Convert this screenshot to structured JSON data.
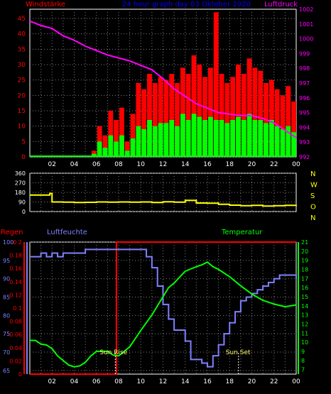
{
  "header": {
    "left_title": "Windstärke",
    "center_title": "24 hour graph day  03 Oktober 2020",
    "right_title": "Luftdruck"
  },
  "colors": {
    "background": "#000000",
    "axis": "#ffffff",
    "grid": "#808080",
    "wind_avg": "#00ff00",
    "wind_gust": "#ff0000",
    "wind_peak": "#ffffff",
    "pressure": "#ff00ff",
    "direction": "#ffff00",
    "rain": "#ff0000",
    "humidity": "#8080ff",
    "temperature": "#00ff00",
    "title_blue": "#0000ff"
  },
  "chart_data": [
    {
      "id": "wind",
      "type": "bar",
      "title": "Windstärke",
      "ylabel_left": "Windstärke",
      "ylabel_right": "Luftdruck",
      "ylim": [
        0,
        48
      ],
      "yticks": [
        0,
        5,
        10,
        15,
        20,
        25,
        30,
        35,
        40,
        45
      ],
      "y2lim": [
        992,
        1002
      ],
      "y2ticks": [
        992,
        993,
        994,
        995,
        996,
        997,
        998,
        999,
        1000,
        1001,
        1002
      ],
      "xlim": [
        0,
        24
      ],
      "xticks": [
        "02",
        "04",
        "06",
        "08",
        "10",
        "12",
        "14",
        "16",
        "18",
        "20",
        "22",
        "00"
      ],
      "xtick_hours": [
        2,
        4,
        6,
        8,
        10,
        12,
        14,
        16,
        18,
        20,
        22,
        24
      ],
      "series": [
        {
          "name": "gust",
          "x": [
            6,
            6.5,
            7,
            7.5,
            8,
            8.5,
            9,
            9.5,
            10,
            10.5,
            11,
            11.5,
            12,
            12.5,
            13,
            13.5,
            14,
            14.5,
            15,
            15.5,
            16,
            16.5,
            17,
            17.5,
            18,
            18.5,
            19,
            19.5,
            20,
            20.5,
            21,
            21.5,
            22,
            22.5,
            23,
            23.5,
            24
          ],
          "values": [
            2,
            10,
            7,
            15,
            12,
            16,
            5,
            14,
            24,
            22,
            27,
            24,
            26,
            25,
            27,
            24,
            29,
            27,
            33,
            30,
            26,
            29,
            47,
            27,
            24,
            26,
            30,
            27,
            32,
            29,
            28,
            24,
            25,
            22,
            20,
            23,
            18
          ]
        },
        {
          "name": "average",
          "x": [
            6,
            6.5,
            7,
            7.5,
            8,
            8.5,
            9,
            9.5,
            10,
            10.5,
            11,
            11.5,
            12,
            12.5,
            13,
            13.5,
            14,
            14.5,
            15,
            15.5,
            16,
            16.5,
            17,
            17.5,
            18,
            18.5,
            19,
            19.5,
            20,
            20.5,
            21,
            21.5,
            22,
            22.5,
            23,
            23.5,
            24
          ],
          "values": [
            1,
            5,
            3,
            7,
            5,
            7,
            2,
            6,
            10,
            9,
            12,
            10,
            11,
            11,
            12,
            10,
            14,
            12,
            14,
            13,
            12,
            13,
            12,
            12,
            11,
            12,
            13,
            12,
            14,
            12,
            12,
            11,
            12,
            10,
            9,
            10,
            8
          ]
        },
        {
          "name": "pressure",
          "x": [
            0,
            1,
            2,
            3,
            4,
            5,
            6,
            7,
            8,
            9,
            10,
            11,
            12,
            13,
            14,
            15,
            16,
            17,
            18,
            19,
            20,
            21,
            22,
            23,
            24
          ],
          "values": [
            1001.2,
            1000.9,
            1000.7,
            1000.2,
            999.9,
            999.5,
            999.2,
            998.9,
            998.7,
            998.5,
            998.2,
            997.9,
            997.3,
            996.6,
            996.1,
            995.6,
            995.3,
            995.0,
            994.9,
            994.8,
            994.8,
            994.6,
            994.3,
            993.8,
            993.3
          ]
        }
      ]
    },
    {
      "id": "direction",
      "type": "line",
      "ylim": [
        0,
        360
      ],
      "yticks": [
        0,
        90,
        180,
        270,
        360
      ],
      "right_labels": [
        "N",
        "W",
        "S",
        "O",
        "N"
      ],
      "xlim": [
        0,
        24
      ],
      "series": [
        {
          "name": "direction",
          "x": [
            0,
            1,
            1.8,
            2,
            3,
            4,
            5,
            6,
            7,
            8,
            9,
            10,
            11,
            12,
            13,
            14,
            15,
            16,
            17,
            18,
            19,
            20,
            21,
            22,
            23,
            24
          ],
          "values": [
            155,
            155,
            170,
            90,
            88,
            85,
            87,
            90,
            88,
            90,
            88,
            90,
            85,
            92,
            88,
            105,
            80,
            78,
            68,
            60,
            55,
            58,
            52,
            55,
            58,
            62
          ]
        }
      ]
    },
    {
      "id": "rain-humidity-temp",
      "type": "line",
      "labels": {
        "rain": "Regen",
        "humidity": "Luftfeuchte",
        "temperature": "Temperatur"
      },
      "humidity_lim": [
        64,
        100
      ],
      "humidity_ticks": [
        65,
        70,
        75,
        80,
        85,
        90,
        95,
        100
      ],
      "rain_lim": [
        0,
        0.2
      ],
      "rain_ticks": [
        "0",
        "0.02",
        "0.04",
        "0.06",
        "0.08",
        "0.1",
        "0.12",
        "0.14",
        "0.16",
        "0.18",
        "0.2"
      ],
      "temp_lim": [
        6.5,
        21
      ],
      "temp_ticks": [
        7,
        8,
        9,
        10,
        11,
        12,
        13,
        14,
        15,
        16,
        17,
        18,
        19,
        20,
        21
      ],
      "xlim": [
        0,
        24
      ],
      "xticks": [
        "02",
        "04",
        "06",
        "08",
        "10",
        "12",
        "14",
        "16",
        "18",
        "20",
        "22",
        "00"
      ],
      "xtick_hours": [
        2,
        4,
        6,
        8,
        10,
        12,
        14,
        16,
        18,
        20,
        22,
        24
      ],
      "annotations": {
        "sunrise": "Sun Rise",
        "sunset": "Sun Set",
        "sunrise_hour": 7.7,
        "sunset_hour": 18.8
      },
      "series": [
        {
          "name": "humidity",
          "x": [
            0,
            0.5,
            1,
            1.5,
            2,
            2.5,
            3,
            3.5,
            4,
            4.5,
            5,
            5.5,
            6,
            7,
            8,
            9,
            10,
            10.5,
            11,
            11.5,
            12,
            12.5,
            13,
            13.5,
            14,
            14.5,
            15,
            15.5,
            16,
            16.5,
            17,
            17.5,
            18,
            18.5,
            19,
            19.5,
            20,
            20.5,
            21,
            21.5,
            22,
            22.5,
            23,
            23.5,
            24
          ],
          "values": [
            96,
            96,
            97,
            96,
            97,
            96,
            97,
            97,
            97,
            97,
            98,
            98,
            98,
            98,
            98,
            98,
            98,
            96,
            93,
            88,
            83,
            79,
            76,
            76,
            73,
            68,
            68,
            67,
            66,
            69,
            72,
            75,
            78,
            81,
            84,
            85,
            86,
            87,
            88,
            89,
            90,
            91,
            91,
            91,
            90
          ]
        },
        {
          "name": "temperature",
          "x": [
            0,
            0.5,
            1,
            1.5,
            2,
            2.5,
            3,
            3.5,
            4,
            4.5,
            5,
            5.5,
            6,
            6.5,
            7,
            7.5,
            8,
            9,
            10,
            11,
            12,
            12.5,
            13,
            14,
            15,
            15.5,
            16,
            16.5,
            17,
            18,
            19,
            20,
            21,
            22,
            23,
            24
          ],
          "values": [
            10.2,
            10.2,
            9.8,
            9.7,
            9.3,
            8.5,
            8.0,
            7.5,
            7.3,
            7.4,
            7.8,
            8.5,
            9.0,
            9.0,
            9.0,
            8.6,
            8.5,
            9.5,
            11.3,
            13.0,
            15.0,
            16.0,
            16.5,
            17.8,
            18.3,
            18.5,
            18.8,
            18.3,
            18.0,
            17.2,
            16.2,
            15.3,
            14.6,
            14.2,
            13.9,
            14.1
          ]
        },
        {
          "name": "rain",
          "x": [
            0,
            7.8,
            7.8,
            24
          ],
          "values": [
            0,
            0,
            0.2,
            0.2
          ]
        }
      ]
    }
  ]
}
